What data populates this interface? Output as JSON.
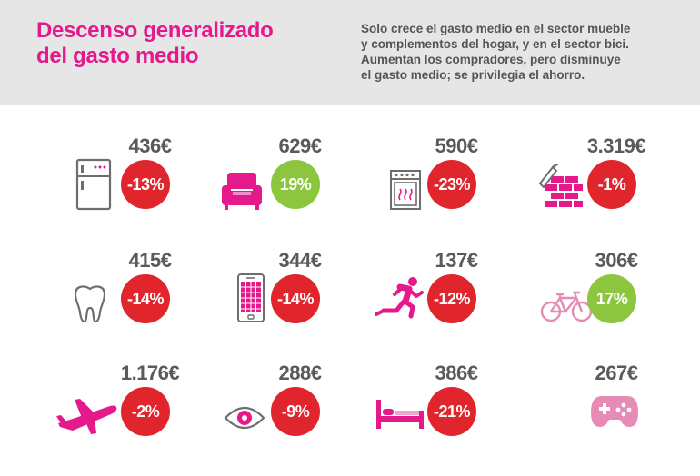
{
  "header": {
    "title_line1": "Descenso generalizado",
    "title_line2": "del gasto medio",
    "subtitle_lines": [
      "Solo crece el gasto medio en el sector mueble",
      "y complementos del hogar, y en el sector bici.",
      "Aumentan los compradores, pero disminuye",
      "el gasto medio; se privilegia el ahorro."
    ]
  },
  "colors": {
    "accent": "#e5198c",
    "negative": "#e0252d",
    "positive": "#8cc63f",
    "text": "#5a5a5a"
  },
  "items": [
    {
      "icon": "fridge-icon",
      "amount": "436€",
      "change": "-13%",
      "trend": "negative"
    },
    {
      "icon": "armchair-icon",
      "amount": "629€",
      "change": "19%",
      "trend": "positive"
    },
    {
      "icon": "oven-icon",
      "amount": "590€",
      "change": "-23%",
      "trend": "negative"
    },
    {
      "icon": "brick-wall-trowel-icon",
      "amount": "3.319€",
      "change": "-1%",
      "trend": "negative"
    },
    {
      "icon": "tooth-icon",
      "amount": "415€",
      "change": "-14%",
      "trend": "negative"
    },
    {
      "icon": "smartphone-icon",
      "amount": "344€",
      "change": "-14%",
      "trend": "negative"
    },
    {
      "icon": "runner-icon",
      "amount": "137€",
      "change": "-12%",
      "trend": "negative"
    },
    {
      "icon": "bicycle-icon",
      "amount": "306€",
      "change": "17%",
      "trend": "positive"
    },
    {
      "icon": "airplane-icon",
      "amount": "1.176€",
      "change": "-2%",
      "trend": "negative"
    },
    {
      "icon": "eye-icon",
      "amount": "288€",
      "change": "-9%",
      "trend": "negative"
    },
    {
      "icon": "bed-icon",
      "amount": "386€",
      "change": "-21%",
      "trend": "negative"
    },
    {
      "icon": "gamepad-icon",
      "amount": "267€",
      "change": "",
      "trend": "none"
    }
  ]
}
